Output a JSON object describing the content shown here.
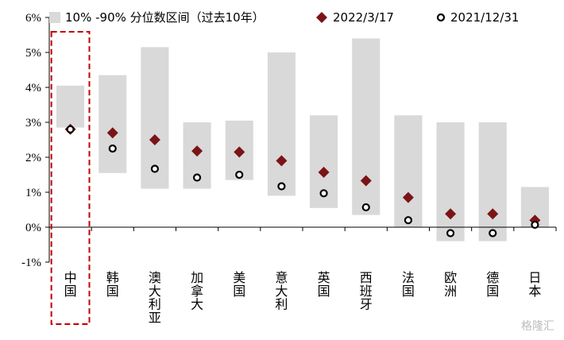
{
  "chart_data": {
    "type": "range-bar-scatter",
    "categories": [
      "中国",
      "韩国",
      "澳大利亚",
      "加拿大",
      "美国",
      "意大利",
      "英国",
      "西班牙",
      "法国",
      "欧洲",
      "德国",
      "日本"
    ],
    "range_low": [
      2.85,
      1.55,
      1.1,
      1.1,
      1.35,
      0.9,
      0.55,
      0.35,
      0.0,
      -0.4,
      -0.4,
      0.0
    ],
    "range_high": [
      4.05,
      4.35,
      5.15,
      3.0,
      3.05,
      5.0,
      3.2,
      5.4,
      3.2,
      3.0,
      3.0,
      1.15
    ],
    "series": [
      {
        "name": "10% -90% 分位数区间（过去10年）",
        "marker": "bar",
        "color": "#d9d9d9"
      },
      {
        "name": "2022/3/17",
        "marker": "diamond",
        "color": "#7b1416",
        "values": [
          2.8,
          2.7,
          2.5,
          2.18,
          2.15,
          1.9,
          1.57,
          1.33,
          0.85,
          0.38,
          0.38,
          0.2
        ]
      },
      {
        "name": "2021/12/31",
        "marker": "circle",
        "color": "#000000",
        "values": [
          2.8,
          2.25,
          1.67,
          1.42,
          1.5,
          1.17,
          0.97,
          0.57,
          0.2,
          -0.17,
          -0.17,
          0.07
        ]
      }
    ],
    "yticks": [
      "6%",
      "5%",
      "4%",
      "3%",
      "2%",
      "1%",
      "0%",
      "-1%"
    ],
    "ytick_values": [
      6,
      5,
      4,
      3,
      2,
      1,
      0,
      -1
    ],
    "ylim": [
      -1,
      6
    ],
    "highlight_category": "中国",
    "legend_position": "top"
  },
  "watermark": "格隆汇"
}
